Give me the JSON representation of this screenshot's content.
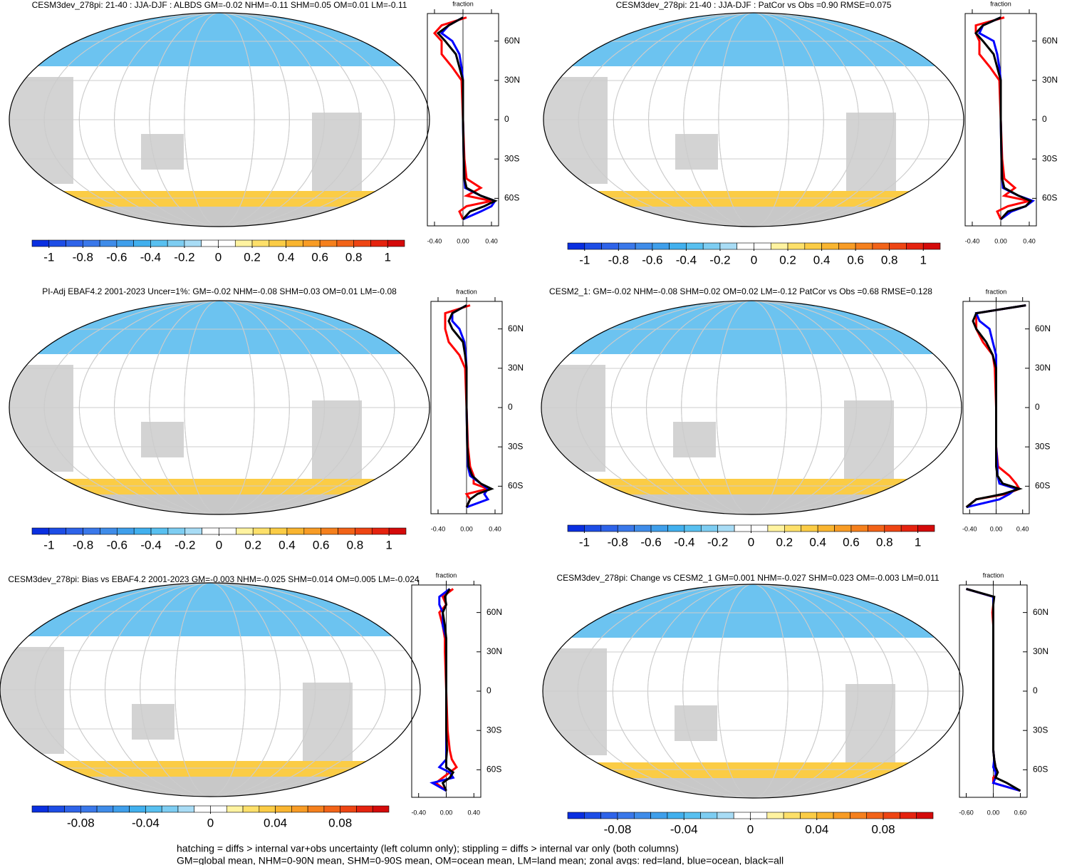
{
  "chart_data": [
    {
      "type": "map",
      "title": "CESM3dev_278pi: 21-40 : JJA-DJF : ALBDS GM=-0.02 NHM=-0.11 SHM=0.05 OM=0.01 LM=-0.11",
      "colorbar": {
        "lim": [
          -1.1,
          1.1
        ],
        "ticks": [
          -1,
          -0.8,
          -0.6,
          -0.4,
          -0.2,
          0,
          0.2,
          0.4,
          0.6,
          0.8,
          1
        ],
        "colors": [
          "#0a2fe0",
          "#1d4de6",
          "#2e63e9",
          "#3a78ea",
          "#3f8ce9",
          "#3f9feb",
          "#41b0ee",
          "#58c0f0",
          "#7dcdf2",
          "#a8dcf5",
          "#ffffff",
          "#ffffff",
          "#fff3a0",
          "#fde06a",
          "#fbcc45",
          "#f9b530",
          "#f89c25",
          "#f5801d",
          "#f26318",
          "#ee4513",
          "#e5230f",
          "#d40a0a"
        ]
      },
      "zonal": {
        "type": "line",
        "xlabel": "fraction",
        "xlim": [
          -0.5,
          0.5
        ],
        "xticks": [
          {
            "value": -0.4,
            "label": "-0.40"
          },
          {
            "value": 0,
            "label": "0.00"
          },
          {
            "value": 0.4,
            "label": "0.40"
          }
        ],
        "ylim": [
          -81,
          81
        ],
        "yticks": [
          {
            "value": 60,
            "label": "60N"
          },
          {
            "value": 30,
            "label": "30N"
          },
          0,
          {
            "value": -30,
            "label": "30S"
          },
          {
            "value": -60,
            "label": "60S"
          }
        ],
        "y": [
          78,
          72,
          66,
          60,
          50,
          40,
          30,
          0,
          -30,
          -45,
          -52,
          -58,
          -62,
          -66,
          -70,
          -76
        ],
        "series": [
          {
            "color": "#ff0000",
            "values": [
              0.05,
              -0.3,
              -0.4,
              -0.3,
              -0.3,
              -0.15,
              -0.02,
              0,
              0.02,
              0.05,
              0.25,
              0.05,
              0.4,
              0.05,
              -0.05,
              0
            ]
          },
          {
            "color": "#0000ff",
            "values": [
              0,
              -0.2,
              -0.3,
              -0.15,
              -0.05,
              -0.02,
              0,
              0,
              0.01,
              0.02,
              0.03,
              0.25,
              0.45,
              0.4,
              0.25,
              0
            ]
          },
          {
            "color": "#000000",
            "values": [
              0,
              -0.2,
              -0.35,
              -0.25,
              -0.1,
              -0.05,
              0,
              0,
              0.01,
              0.02,
              0.05,
              0.25,
              0.45,
              0.3,
              0.1,
              0
            ]
          }
        ]
      }
    },
    {
      "type": "map",
      "title": "CESM3dev_278pi: 21-40 : JJA-DJF : PatCor vs Obs =0.90 RMSE=0.075",
      "colorbar": {
        "lim": [
          -1.1,
          1.1
        ],
        "ticks": [
          -1,
          -0.8,
          -0.6,
          -0.4,
          -0.2,
          0,
          0.2,
          0.4,
          0.6,
          0.8,
          1
        ],
        "colors": [
          "#0a2fe0",
          "#1d4de6",
          "#2e63e9",
          "#3a78ea",
          "#3f8ce9",
          "#3f9feb",
          "#41b0ee",
          "#58c0f0",
          "#7dcdf2",
          "#a8dcf5",
          "#ffffff",
          "#ffffff",
          "#fff3a0",
          "#fde06a",
          "#fbcc45",
          "#f9b530",
          "#f89c25",
          "#f5801d",
          "#f26318",
          "#ee4513",
          "#e5230f",
          "#d40a0a"
        ]
      },
      "zonal": {
        "type": "line",
        "xlabel": "fraction",
        "xlim": [
          -0.5,
          0.5
        ],
        "xticks": [
          {
            "value": -0.4,
            "label": "-0.40"
          },
          {
            "value": 0,
            "label": "0.00"
          },
          {
            "value": 0.4,
            "label": "0.40"
          }
        ],
        "ylim": [
          -81,
          81
        ],
        "yticks": [
          {
            "value": 60,
            "label": "60N"
          },
          {
            "value": 30,
            "label": "30N"
          },
          0,
          {
            "value": -30,
            "label": "30S"
          },
          {
            "value": -60,
            "label": "60S"
          }
        ],
        "y": [
          78,
          72,
          66,
          60,
          50,
          40,
          30,
          0,
          -30,
          -45,
          -52,
          -58,
          -62,
          -66,
          -70,
          -76
        ],
        "series": [
          {
            "color": "#ff0000",
            "values": [
              0.05,
              -0.35,
              -0.35,
              -0.3,
              -0.3,
              -0.15,
              -0.02,
              0,
              0.02,
              0.05,
              0.2,
              0.05,
              0.4,
              0.1,
              -0.05,
              0
            ]
          },
          {
            "color": "#0000ff",
            "values": [
              0,
              -0.25,
              -0.3,
              -0.1,
              -0.05,
              -0.02,
              0,
              0,
              0.01,
              0.02,
              0.03,
              0.25,
              0.45,
              0.35,
              0.15,
              0
            ]
          },
          {
            "color": "#000000",
            "values": [
              0,
              -0.25,
              -0.35,
              -0.25,
              -0.1,
              -0.05,
              0,
              0,
              0.01,
              0.02,
              0.05,
              0.25,
              0.42,
              0.35,
              0.1,
              0
            ]
          }
        ]
      }
    },
    {
      "type": "map",
      "title": "PI-Adj EBAF4.2 2001-2023 Uncer=1%: GM=-0.02 NHM=-0.08 SHM=0.03 OM=0.01 LM=-0.08",
      "colorbar": {
        "lim": [
          -1.1,
          1.1
        ],
        "ticks": [
          -1,
          -0.8,
          -0.6,
          -0.4,
          -0.2,
          0,
          0.2,
          0.4,
          0.6,
          0.8,
          1
        ],
        "colors": [
          "#0a2fe0",
          "#1d4de6",
          "#2e63e9",
          "#3a78ea",
          "#3f8ce9",
          "#3f9feb",
          "#41b0ee",
          "#58c0f0",
          "#7dcdf2",
          "#a8dcf5",
          "#ffffff",
          "#ffffff",
          "#fff3a0",
          "#fde06a",
          "#fbcc45",
          "#f9b530",
          "#f89c25",
          "#f5801d",
          "#f26318",
          "#ee4513",
          "#e5230f",
          "#d40a0a"
        ]
      },
      "zonal": {
        "type": "line",
        "xlabel": "fraction",
        "xlim": [
          -0.5,
          0.5
        ],
        "xticks": [
          {
            "value": -0.4,
            "label": "-0.40"
          },
          {
            "value": 0,
            "label": "0.00"
          },
          {
            "value": 0.4,
            "label": "0.40"
          }
        ],
        "ylim": [
          -81,
          81
        ],
        "yticks": [
          {
            "value": 60,
            "label": "60N"
          },
          {
            "value": 30,
            "label": "30N"
          },
          0,
          {
            "value": -30,
            "label": "30S"
          },
          {
            "value": -60,
            "label": "60S"
          }
        ],
        "y": [
          78,
          72,
          66,
          60,
          50,
          40,
          30,
          0,
          -30,
          -45,
          -52,
          -58,
          -62,
          -66,
          -70,
          -76
        ],
        "series": [
          {
            "color": "#ff0000",
            "values": [
              0.05,
              -0.3,
              -0.3,
              -0.3,
              -0.25,
              -0.1,
              -0.02,
              0,
              0.02,
              0.05,
              0.1,
              0.1,
              0.3,
              0,
              0.05,
              0
            ]
          },
          {
            "color": "#0000ff",
            "values": [
              0,
              -0.2,
              -0.2,
              -0.1,
              -0.03,
              -0.01,
              0,
              0,
              0.01,
              0.02,
              0.05,
              0.2,
              0.3,
              0.25,
              0.3,
              0
            ]
          },
          {
            "color": "#000000",
            "values": [
              0,
              -0.2,
              -0.25,
              -0.2,
              -0.05,
              -0.02,
              0,
              0,
              0.01,
              0.03,
              0.08,
              0.2,
              0.35,
              0.15,
              0.05,
              0
            ]
          }
        ]
      }
    },
    {
      "type": "map",
      "title": "CESM2_1: GM=-0.02 NHM=-0.08 SHM=0.02 OM=0.02 LM=-0.12 PatCor vs Obs =0.68 RMSE=0.128",
      "colorbar": {
        "lim": [
          -1.1,
          1.1
        ],
        "ticks": [
          -1,
          -0.8,
          -0.6,
          -0.4,
          -0.2,
          0,
          0.2,
          0.4,
          0.6,
          0.8,
          1
        ],
        "colors": [
          "#0a2fe0",
          "#1d4de6",
          "#2e63e9",
          "#3a78ea",
          "#3f8ce9",
          "#3f9feb",
          "#41b0ee",
          "#58c0f0",
          "#7dcdf2",
          "#a8dcf5",
          "#ffffff",
          "#ffffff",
          "#fff3a0",
          "#fde06a",
          "#fbcc45",
          "#f9b530",
          "#f89c25",
          "#f5801d",
          "#f26318",
          "#ee4513",
          "#e5230f",
          "#d40a0a"
        ]
      },
      "zonal": {
        "type": "line",
        "xlabel": "fraction",
        "xlim": [
          -0.5,
          0.5
        ],
        "xticks": [
          {
            "value": -0.4,
            "label": "-0.40"
          },
          {
            "value": 0,
            "label": "0.00"
          },
          {
            "value": 0.4,
            "label": "0.40"
          }
        ],
        "ylim": [
          -81,
          81
        ],
        "yticks": [
          {
            "value": 60,
            "label": "60N"
          },
          {
            "value": 30,
            "label": "30N"
          },
          0,
          {
            "value": -30,
            "label": "30S"
          },
          {
            "value": -60,
            "label": "60S"
          }
        ],
        "y": [
          78,
          72,
          66,
          60,
          50,
          40,
          30,
          0,
          -30,
          -45,
          -52,
          -58,
          -62,
          -66,
          -70,
          -76
        ],
        "series": [
          {
            "color": "#ff0000",
            "values": [
              0.45,
              -0.3,
              -0.3,
              -0.3,
              -0.2,
              -0.05,
              -0.02,
              0,
              0,
              0.03,
              0.2,
              0.3,
              0.35,
              0.15,
              -0.3,
              -0.45
            ]
          },
          {
            "color": "#0000ff",
            "values": [
              0.45,
              -0.3,
              -0.25,
              -0.1,
              -0.05,
              0,
              0,
              0,
              0,
              0.02,
              0.02,
              0.05,
              0.3,
              0.2,
              0.05,
              -0.45
            ]
          },
          {
            "color": "#000000",
            "values": [
              0.45,
              -0.3,
              -0.35,
              -0.3,
              -0.15,
              -0.05,
              0,
              0,
              0,
              0,
              0.02,
              0.1,
              0.35,
              0.1,
              -0.3,
              -0.45
            ]
          }
        ]
      }
    },
    {
      "type": "map",
      "title": "CESM3dev_278pi: Bias vs EBAF4.2 2001-2023 GM=-0.003 NHM=-0.025 SHM=0.014 OM=0.005 LM=-0.024",
      "colorbar": {
        "lim": [
          -0.11,
          0.11
        ],
        "ticks": [
          -0.08,
          -0.04,
          0,
          0.04,
          0.08
        ],
        "colors": [
          "#0a2fe0",
          "#1d4de6",
          "#2e63e9",
          "#3a78ea",
          "#3f8ce9",
          "#3f9feb",
          "#41b0ee",
          "#58c0f0",
          "#7dcdf2",
          "#a8dcf5",
          "#ffffff",
          "#ffffff",
          "#fff3a0",
          "#fde06a",
          "#fbcc45",
          "#f9b530",
          "#f89c25",
          "#f5801d",
          "#f26318",
          "#ee4513",
          "#e5230f",
          "#d40a0a"
        ]
      },
      "zonal": {
        "type": "line",
        "xlabel": "fraction",
        "xlim": [
          -0.5,
          0.5
        ],
        "xticks": [
          {
            "value": -0.4,
            "label": "-0.40"
          },
          {
            "value": 0,
            "label": "0.00"
          },
          {
            "value": 0.4,
            "label": "0.40"
          }
        ],
        "ylim": [
          -81,
          81
        ],
        "yticks": [
          {
            "value": 60,
            "label": "60N"
          },
          {
            "value": 30,
            "label": "30N"
          },
          0,
          {
            "value": -30,
            "label": "30S"
          },
          {
            "value": -60,
            "label": "60S"
          }
        ],
        "y": [
          78,
          72,
          66,
          60,
          50,
          40,
          30,
          0,
          -30,
          -45,
          -52,
          -58,
          -62,
          -66,
          -70,
          -76
        ],
        "series": [
          {
            "color": "#ff0000",
            "values": [
              0.1,
              -0.05,
              0,
              -0.1,
              -0.05,
              -0.02,
              -0.02,
              0,
              0.02,
              0.05,
              0.08,
              0.15,
              0.05,
              -0.05,
              -0.15,
              0
            ]
          },
          {
            "color": "#0000ff",
            "values": [
              0.05,
              -0.1,
              -0.1,
              -0.05,
              -0.05,
              0,
              0,
              0,
              0,
              0,
              0,
              -0.1,
              0.05,
              0.1,
              -0.2,
              0
            ]
          },
          {
            "color": "#000000",
            "values": [
              0.05,
              -0.02,
              0,
              -0.05,
              -0.02,
              0,
              0,
              0,
              0,
              0.01,
              0,
              0,
              0.1,
              0.05,
              -0.05,
              0
            ]
          }
        ]
      }
    },
    {
      "type": "map",
      "title": "CESM3dev_278pi: Change vs CESM2_1 GM=0.001 NHM=-0.027 SHM=0.023 OM=-0.003 LM=0.011",
      "colorbar": {
        "lim": [
          -0.11,
          0.11
        ],
        "ticks": [
          -0.08,
          -0.04,
          0,
          0.04,
          0.08
        ],
        "colors": [
          "#0a2fe0",
          "#1d4de6",
          "#2e63e9",
          "#3a78ea",
          "#3f8ce9",
          "#3f9feb",
          "#41b0ee",
          "#58c0f0",
          "#7dcdf2",
          "#a8dcf5",
          "#ffffff",
          "#ffffff",
          "#fff3a0",
          "#fde06a",
          "#fbcc45",
          "#f9b530",
          "#f89c25",
          "#f5801d",
          "#f26318",
          "#ee4513",
          "#e5230f",
          "#d40a0a"
        ]
      },
      "zonal": {
        "type": "line",
        "xlabel": "fraction",
        "xlim": [
          -0.75,
          0.75
        ],
        "xticks": [
          {
            "value": -0.6,
            "label": "-0.60"
          },
          {
            "value": 0,
            "label": "0.00"
          },
          {
            "value": 0.6,
            "label": "0.60"
          }
        ],
        "ylim": [
          -81,
          81
        ],
        "yticks": [
          {
            "value": 60,
            "label": "60N"
          },
          {
            "value": 30,
            "label": "30N"
          },
          0,
          {
            "value": -30,
            "label": "30S"
          },
          {
            "value": -60,
            "label": "60S"
          }
        ],
        "y": [
          78,
          72,
          66,
          60,
          50,
          40,
          30,
          0,
          -30,
          -45,
          -52,
          -58,
          -62,
          -66,
          -70,
          -76
        ],
        "series": [
          {
            "color": "#ff0000",
            "values": [
              -0.6,
              0,
              0,
              -0.02,
              0,
              0,
              0,
              0,
              0,
              0,
              0.02,
              0.05,
              0.1,
              0,
              0,
              0.6
            ]
          },
          {
            "color": "#0000ff",
            "values": [
              -0.6,
              0,
              0,
              0,
              0,
              0,
              0,
              0,
              0,
              0,
              0.02,
              0,
              0.05,
              0.05,
              0,
              0.6
            ]
          },
          {
            "color": "#000000",
            "values": [
              -0.6,
              0.02,
              0,
              0,
              0,
              0,
              0,
              0,
              0,
              0,
              0.02,
              0.05,
              0.1,
              0.05,
              0.3,
              0.6
            ]
          }
        ]
      }
    }
  ],
  "footer": [
    "hatching = diffs > internal var+obs uncertainty (left column only); stippling = diffs > internal var only (both columns)",
    "GM=global mean, NHM=0-90N mean, SHM=0-90S mean, OM=ocean mean, LM=land mean; zonal avgs: red=land, blue=ocean, black=all"
  ]
}
